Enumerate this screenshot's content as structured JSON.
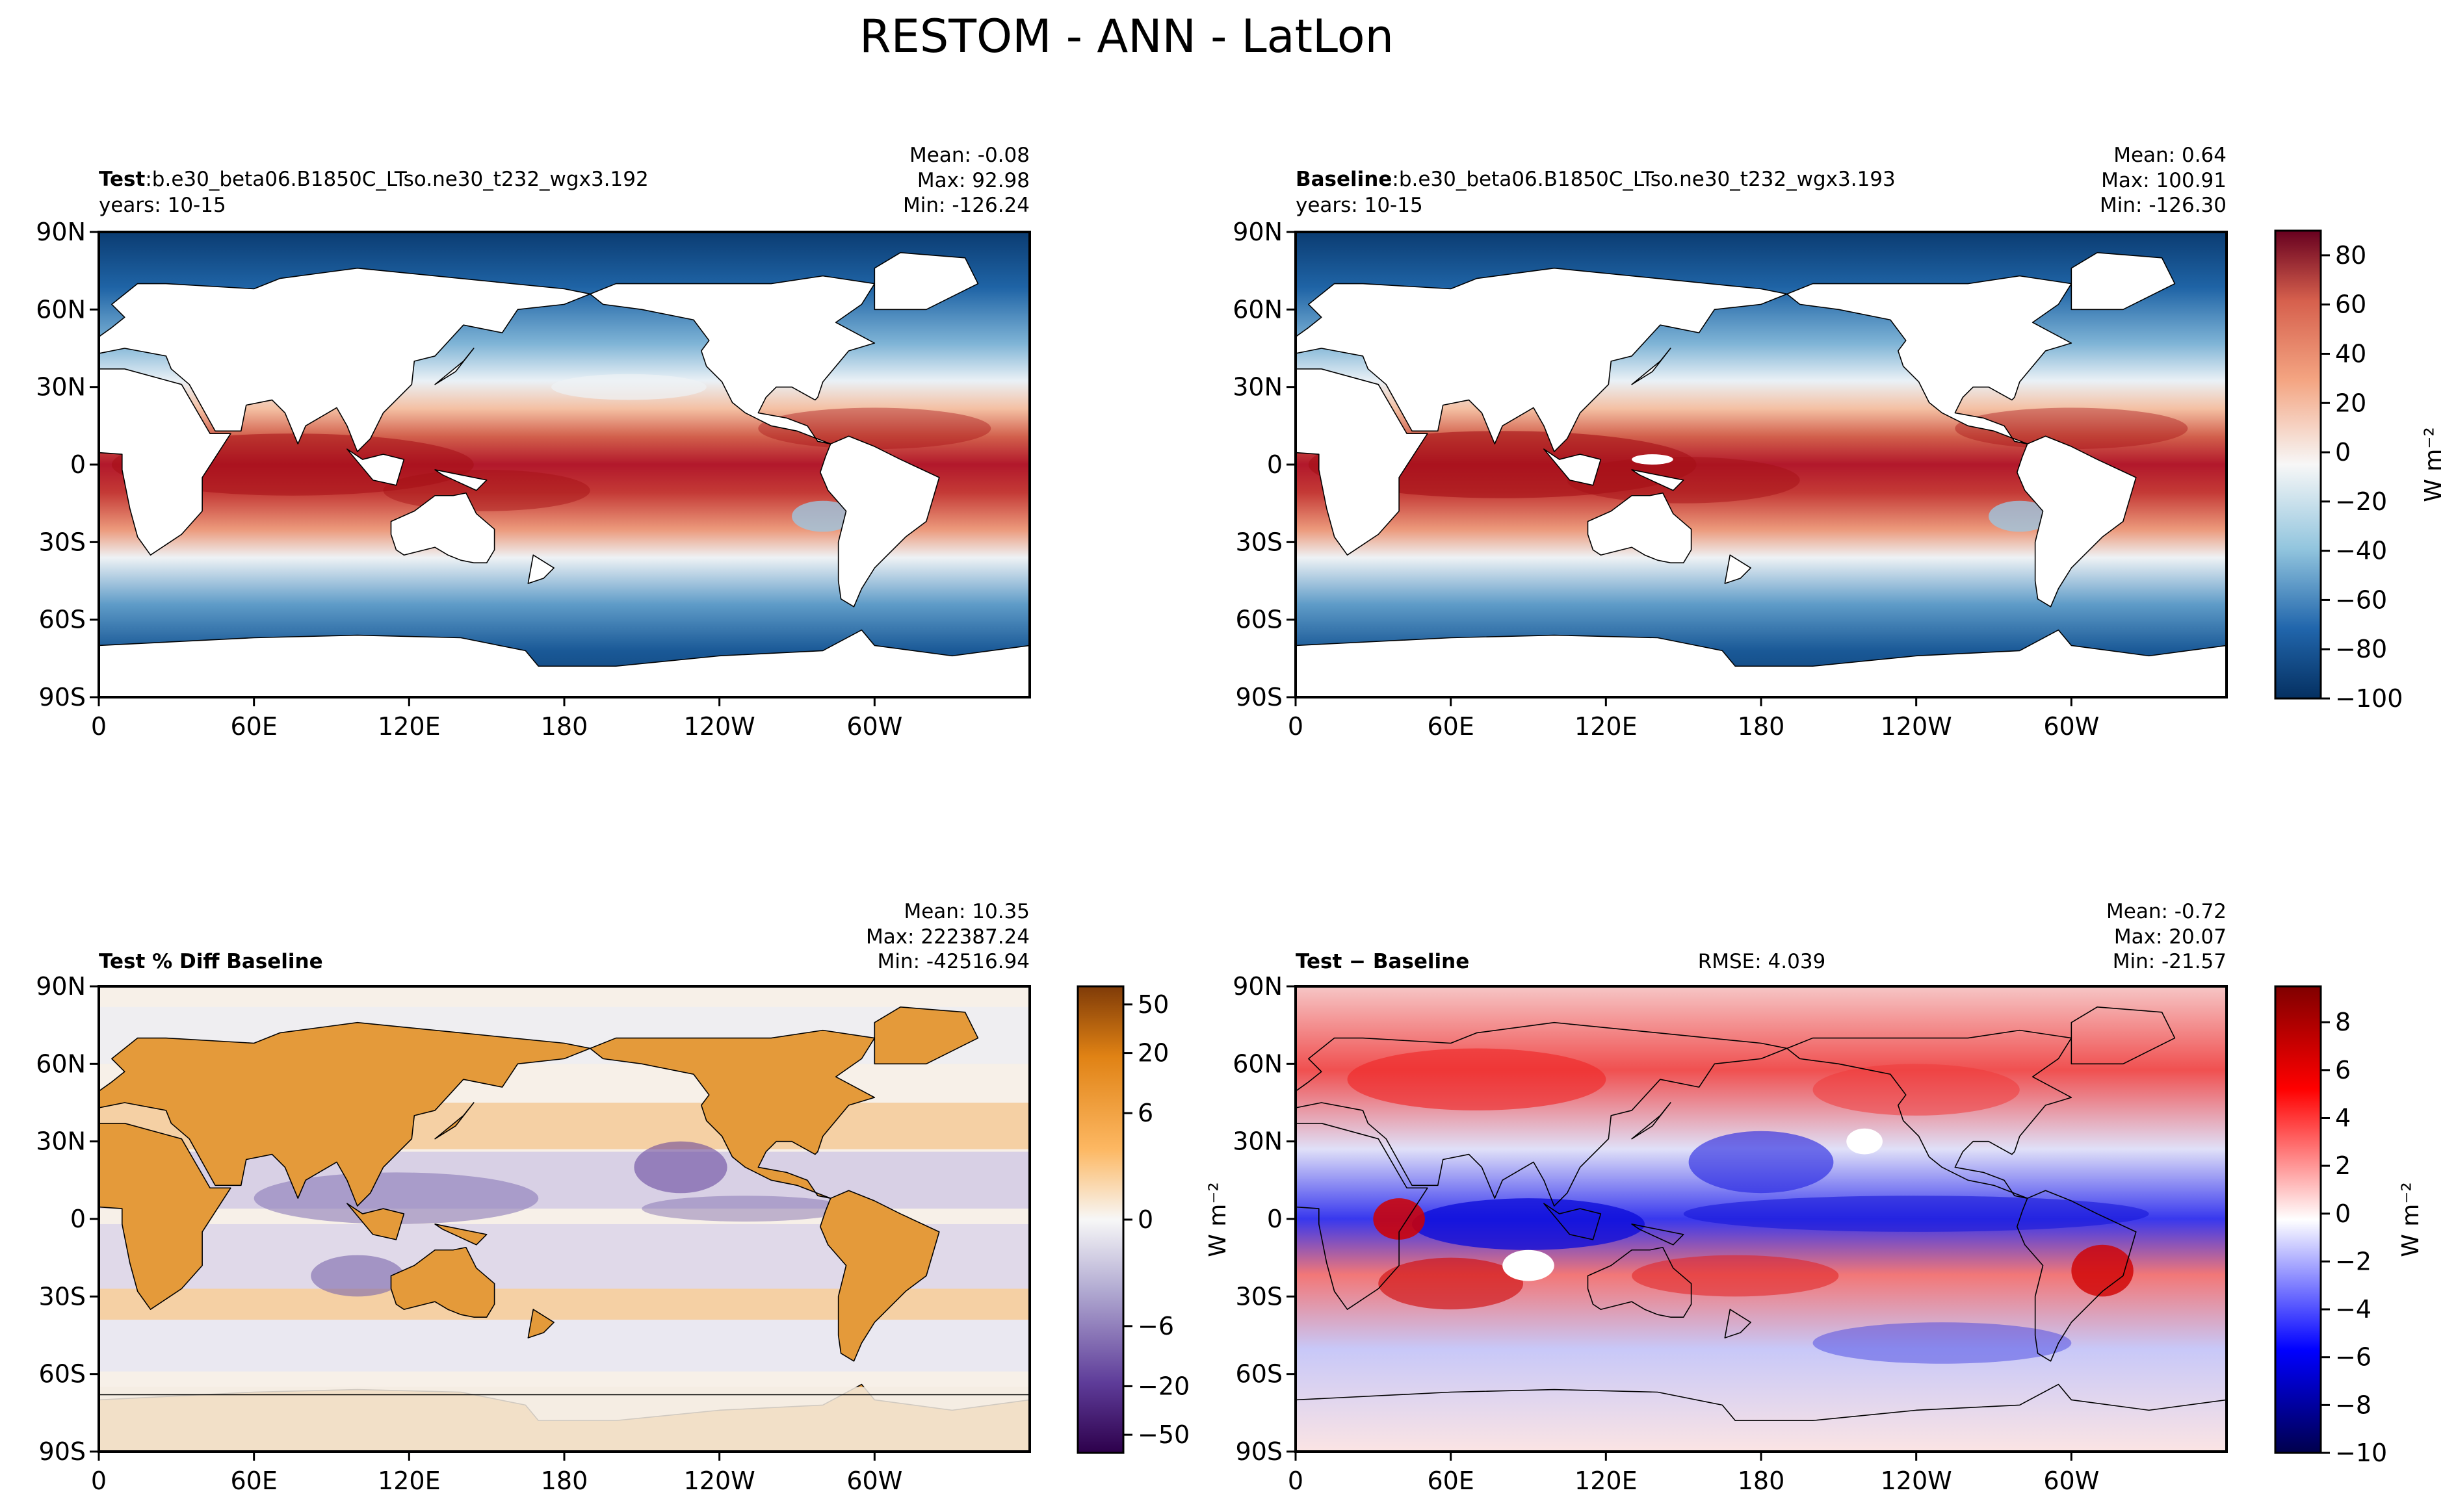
{
  "figure": {
    "title": "RESTOM - ANN - LatLon"
  },
  "lat_ticks": [
    "90N",
    "60N",
    "30N",
    "0",
    "30S",
    "60S",
    "90S"
  ],
  "lon_ticks": [
    "0",
    "60E",
    "120E",
    "180",
    "120W",
    "60W"
  ],
  "panels": {
    "test": {
      "label": "Test",
      "sep": ":",
      "case": "b.e30_beta06.B1850C_LTso.ne30_t232_wgx3.192",
      "years": "years: 10-15",
      "mean": "Mean: -0.08",
      "max": "Max: 92.98",
      "min": "Min: -126.24"
    },
    "baseline": {
      "label": "Baseline",
      "sep": ":",
      "case": "b.e30_beta06.B1850C_LTso.ne30_t232_wgx3.193",
      "years": "years: 10-15",
      "mean": "Mean:  0.64",
      "max": "Max: 100.91",
      "min": "Min: -126.30"
    },
    "pctdiff": {
      "label": "Test % Diff Baseline",
      "mean": "Mean: 10.35",
      "max": "Max: 222387.24",
      "min": "Min: -42516.94"
    },
    "diff": {
      "label": "Test − Baseline",
      "rmse": "RMSE: 4.039",
      "mean": "Mean: -0.72",
      "max": "Max: 20.07",
      "min": "Min: -21.57"
    }
  },
  "colorbars": {
    "main": {
      "ticks": [
        "80",
        "60",
        "40",
        "20",
        "0",
        "−20",
        "−40",
        "−60",
        "−80",
        "−100"
      ],
      "unit": "W m⁻²"
    },
    "pct": {
      "ticks": [
        "50",
        "20",
        "6",
        "0",
        "−6",
        "−20",
        "−50"
      ]
    },
    "pct_side_unit": "W m⁻²",
    "diff": {
      "ticks": [
        "8",
        "6",
        "4",
        "2",
        "0",
        "−2",
        "−4",
        "−6",
        "−8",
        "−10"
      ],
      "unit": "W m⁻²"
    }
  },
  "chart_data": {
    "type": "heatmap",
    "title": "RESTOM - ANN - LatLon",
    "xlabel": "",
    "ylabel": "",
    "x_ticks": [
      "0",
      "60E",
      "120E",
      "180",
      "120W",
      "60W"
    ],
    "y_ticks": [
      "90N",
      "60N",
      "30N",
      "0",
      "30S",
      "60S",
      "90S"
    ],
    "colorbars": [
      {
        "panels": [
          "Test",
          "Baseline"
        ],
        "range": [
          -100,
          90
        ],
        "ticks": [
          80,
          60,
          40,
          20,
          0,
          -20,
          -40,
          -60,
          -80,
          -100
        ],
        "colormap": "RdBu_r",
        "unit": "W m-2"
      },
      {
        "panels": [
          "Test % Diff Baseline"
        ],
        "range": [
          -70,
          70
        ],
        "ticks": [
          50,
          20,
          6,
          0,
          -6,
          -20,
          -50
        ],
        "colormap": "PuOr_r"
      },
      {
        "panels": [
          "Test - Baseline"
        ],
        "range": [
          -10,
          9.5
        ],
        "ticks": [
          8,
          6,
          4,
          2,
          0,
          -2,
          -4,
          -6,
          -8,
          -10
        ],
        "colormap": "seismic",
        "unit": "W m-2"
      }
    ],
    "panel_stats": [
      {
        "panel": "Test",
        "mean": -0.08,
        "max": 92.98,
        "min": -126.24
      },
      {
        "panel": "Baseline",
        "mean": 0.64,
        "max": 100.91,
        "min": -126.3
      },
      {
        "panel": "Test % Diff Baseline",
        "mean": 10.35,
        "max": 222387.24,
        "min": -42516.94
      },
      {
        "panel": "Test - Baseline",
        "mean": -0.72,
        "max": 20.07,
        "min": -21.57,
        "rmse": 4.039
      }
    ]
  }
}
